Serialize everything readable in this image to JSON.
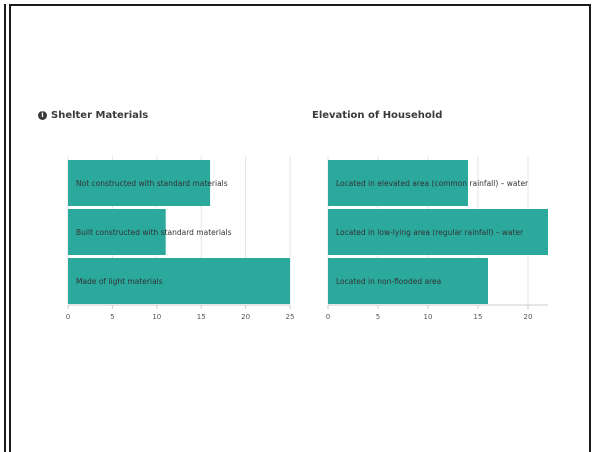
{
  "colors": {
    "bar": "#2ba99c",
    "gridline": "#e6e6e6",
    "axis": "#cccccc",
    "label": "#333333",
    "tick": "#555555"
  },
  "chart_data": [
    {
      "type": "bar",
      "orientation": "horizontal",
      "title": "Shelter Materials",
      "has_info_icon": true,
      "categories": [
        "Not constructed with standard materials",
        "Built constructed with standard materials",
        "Made of light materials"
      ],
      "values": [
        16,
        11,
        25
      ],
      "xlim": [
        0,
        25
      ],
      "xticks": [
        0,
        5,
        10,
        15,
        20,
        25
      ],
      "grid": true
    },
    {
      "type": "bar",
      "orientation": "horizontal",
      "title": "Elevation of Household",
      "has_info_icon": false,
      "categories": [
        "Located in elevated area (common rainfall) – water",
        "Located in low-lying area (regular rainfall) – water",
        "Located in non-flooded area"
      ],
      "values": [
        14,
        22,
        16
      ],
      "xlim": [
        0,
        22
      ],
      "xticks": [
        0,
        5,
        10,
        15,
        20
      ],
      "grid": true
    }
  ]
}
